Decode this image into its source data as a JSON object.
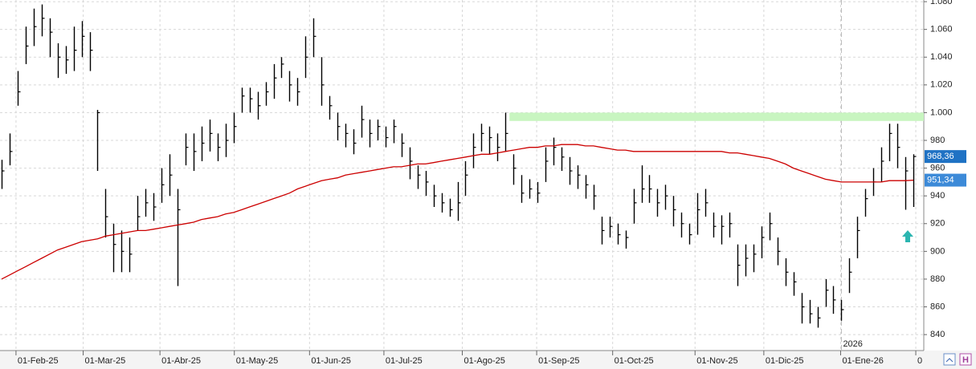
{
  "chart_data": {
    "type": "ohlc",
    "ylim": [
      828.5,
      1081.2
    ],
    "yticks": [
      840,
      860,
      880,
      900,
      920,
      940,
      960,
      980,
      {
        "value": 1000,
        "label": "1.000"
      },
      {
        "value": 1020,
        "label": "1.020"
      },
      {
        "value": 1040,
        "label": "1.040"
      },
      {
        "value": 1060,
        "label": "1.060"
      },
      {
        "value": 1080,
        "label": "1.080"
      }
    ],
    "xlim": [
      -0.2,
      115.3
    ],
    "xticks": [
      {
        "value": 1.8,
        "label": "01-Feb-25"
      },
      {
        "value": 10.2,
        "label": "01-Mar-25"
      },
      {
        "value": 19.8,
        "label": "01-Abr-25"
      },
      {
        "value": 29.1,
        "label": "01-May-25"
      },
      {
        "value": 38.5,
        "label": "01-Jun-25"
      },
      {
        "value": 47.8,
        "label": "01-Jul-25"
      },
      {
        "value": 57.6,
        "label": "01-Ago-25"
      },
      {
        "value": 66.9,
        "label": "01-Sep-25"
      },
      {
        "value": 76.4,
        "label": "01-Oct-25"
      },
      {
        "value": 86.7,
        "label": "01-Nov-25"
      },
      {
        "value": 95.3,
        "label": "01-Dic-25"
      },
      {
        "value": 104.9,
        "label": "01-Ene-26"
      },
      {
        "value": 114.3,
        "label": "0"
      }
    ],
    "year_marker": {
      "value": 105,
      "label": "2026"
    },
    "grid": true,
    "zone": {
      "color": "#c8f5c0",
      "x_start": 63.5,
      "low": 994,
      "high": 1000
    },
    "ohlc": {
      "color": "#000000",
      "high": [
        966,
        985,
        1030,
        1062,
        1075,
        1078,
        1068,
        1050,
        1048,
        1062,
        1066,
        1058,
        1002,
        945,
        920,
        915,
        910,
        940,
        945,
        942,
        960,
        970,
        945,
        985,
        985,
        990,
        995,
        985,
        992,
        1000,
        1018,
        1018,
        1015,
        1022,
        1035,
        1040,
        1030,
        1025,
        1055,
        1068,
        1040,
        1012,
        1000,
        992,
        988,
        1005,
        995,
        995,
        990,
        995,
        985,
        975,
        962,
        958,
        948,
        942,
        938,
        950,
        965,
        985,
        992,
        990,
        985,
        1000,
        970,
        955,
        952,
        950,
        975,
        982,
        975,
        968,
        962,
        955,
        948,
        925,
        925,
        920,
        915,
        945,
        962,
        955,
        945,
        948,
        940,
        928,
        920,
        942,
        945,
        928,
        926,
        928,
        905,
        905,
        905,
        918,
        928,
        910,
        895,
        885,
        870,
        865,
        860,
        880,
        875,
        865,
        895,
        925,
        945,
        960,
        975,
        992,
        992,
        968,
        970
      ],
      "low": [
        945,
        962,
        1005,
        1035,
        1048,
        1055,
        1040,
        1025,
        1028,
        1030,
        1040,
        1030,
        958,
        910,
        885,
        885,
        885,
        915,
        925,
        922,
        935,
        940,
        875,
        962,
        958,
        965,
        972,
        965,
        968,
        978,
        1000,
        1000,
        995,
        1005,
        1010,
        1025,
        1008,
        1005,
        1025,
        1040,
        1005,
        995,
        980,
        975,
        970,
        982,
        975,
        980,
        975,
        978,
        968,
        952,
        945,
        940,
        932,
        928,
        925,
        922,
        940,
        960,
        972,
        970,
        965,
        972,
        948,
        935,
        938,
        935,
        950,
        962,
        958,
        948,
        945,
        938,
        930,
        905,
        910,
        905,
        902,
        920,
        935,
        935,
        925,
        930,
        918,
        910,
        905,
        912,
        925,
        910,
        905,
        910,
        875,
        882,
        885,
        895,
        908,
        890,
        875,
        868,
        848,
        848,
        845,
        860,
        855,
        850,
        870,
        895,
        925,
        940,
        950,
        965,
        960,
        930,
        932
      ],
      "close": [
        958,
        972,
        1015,
        1048,
        1062,
        1068,
        1058,
        1040,
        1038,
        1045,
        1055,
        1045,
        1000,
        925,
        905,
        900,
        898,
        925,
        935,
        932,
        948,
        955,
        930,
        975,
        972,
        978,
        985,
        975,
        980,
        990,
        1012,
        1010,
        1005,
        1015,
        1025,
        1035,
        1020,
        1015,
        1040,
        1055,
        1020,
        1005,
        990,
        985,
        978,
        995,
        985,
        990,
        982,
        990,
        978,
        965,
        955,
        950,
        940,
        935,
        930,
        935,
        955,
        975,
        985,
        982,
        975,
        985,
        960,
        942,
        945,
        942,
        965,
        975,
        968,
        958,
        955,
        948,
        940,
        915,
        918,
        912,
        910,
        935,
        945,
        945,
        935,
        940,
        930,
        920,
        912,
        930,
        935,
        918,
        918,
        920,
        890,
        895,
        898,
        910,
        920,
        900,
        885,
        878,
        860,
        855,
        852,
        872,
        865,
        858,
        885,
        915,
        938,
        950,
        965,
        985,
        975,
        958,
        968.36
      ],
      "last_label": "968,36"
    },
    "ma": {
      "color": "#cc0000",
      "values": [
        880,
        883,
        886,
        889,
        892,
        895,
        898,
        901,
        903,
        905,
        907,
        908,
        909,
        911,
        912,
        913,
        914,
        915,
        915,
        916,
        917,
        918,
        919,
        920,
        921,
        923,
        924,
        925,
        927,
        928,
        930,
        932,
        934,
        936,
        938,
        940,
        942,
        945,
        947,
        949,
        951,
        952,
        953,
        955,
        956,
        957,
        958,
        959,
        960,
        961,
        961,
        962,
        963,
        963,
        964,
        965,
        966,
        967,
        968,
        969,
        970,
        970,
        971,
        972,
        973,
        974,
        975,
        975,
        976,
        976,
        977,
        977,
        977,
        976,
        976,
        975,
        974,
        973,
        973,
        972,
        972,
        972,
        972,
        972,
        972,
        972,
        972,
        972,
        972,
        972,
        972,
        971,
        971,
        970,
        969,
        968,
        967,
        965,
        963,
        960,
        958,
        956,
        954,
        952,
        951,
        950,
        950,
        950,
        950,
        950,
        950,
        951,
        951,
        951,
        951.34
      ],
      "last_label": "951,34"
    }
  }
}
